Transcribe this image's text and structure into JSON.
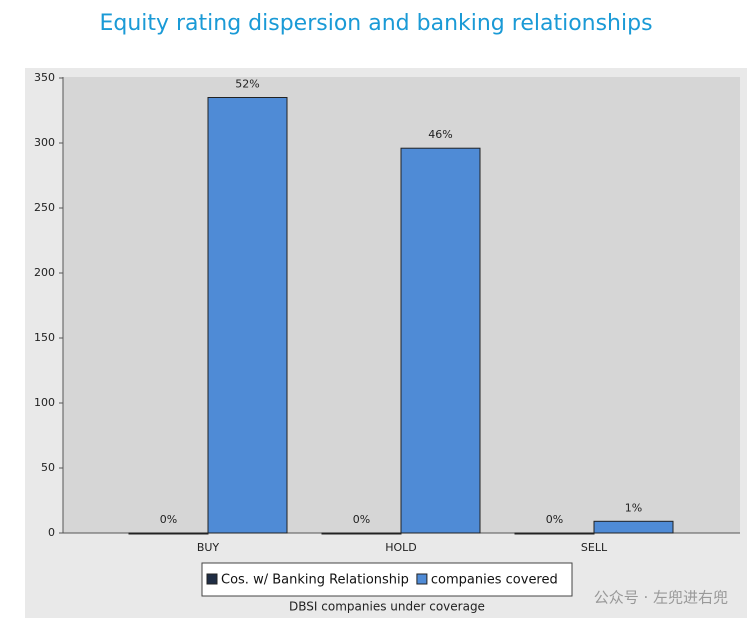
{
  "chart_data": {
    "type": "bar",
    "title": "Equity rating dispersion and banking relationships",
    "x_label": "DBSI companies under coverage",
    "categories": [
      "BUY",
      "HOLD",
      "SELL"
    ],
    "series": [
      {
        "name": "Cos. w/ Banking Relationship",
        "color": "#1f2d44",
        "values": [
          0,
          0,
          0
        ],
        "value_labels": [
          "0%",
          "0%",
          "0%"
        ]
      },
      {
        "name": "companies covered",
        "color": "#4f8bd6",
        "values": [
          335,
          296,
          9
        ],
        "value_labels": [
          "52%",
          "46%",
          "1%"
        ]
      }
    ],
    "ylim": [
      0,
      350
    ],
    "yticks": [
      0,
      50,
      100,
      150,
      200,
      250,
      300,
      350
    ],
    "legend": "bottom",
    "watermark": "公众号 · 左兜进右兜"
  }
}
